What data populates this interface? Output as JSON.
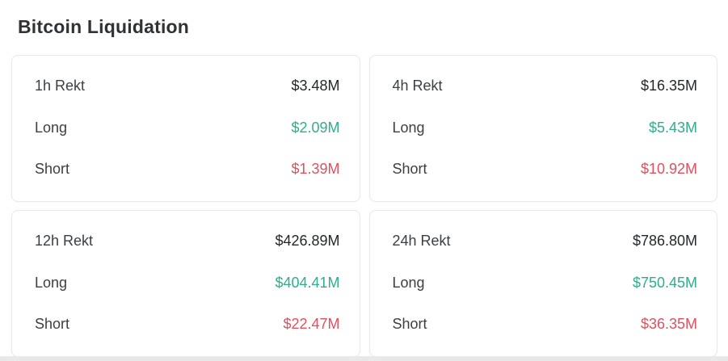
{
  "page": {
    "title": "Bitcoin Liquidation"
  },
  "colors": {
    "title": "#2f3338",
    "label": "#3b4046",
    "total": "#24282d",
    "long": "#2fae8e",
    "short": "#e0505f",
    "card_border": "#e8e8e8"
  },
  "cards": [
    {
      "period": "1h",
      "rows": [
        {
          "label": "1h Rekt",
          "value": "$3.48M"
        },
        {
          "label": "Long",
          "value": "$2.09M"
        },
        {
          "label": "Short",
          "value": "$1.39M"
        }
      ]
    },
    {
      "period": "4h",
      "rows": [
        {
          "label": "4h Rekt",
          "value": "$16.35M"
        },
        {
          "label": "Long",
          "value": "$5.43M"
        },
        {
          "label": "Short",
          "value": "$10.92M"
        }
      ]
    },
    {
      "period": "12h",
      "rows": [
        {
          "label": "12h Rekt",
          "value": "$426.89M"
        },
        {
          "label": "Long",
          "value": "$404.41M"
        },
        {
          "label": "Short",
          "value": "$22.47M"
        }
      ]
    },
    {
      "period": "24h",
      "rows": [
        {
          "label": "24h Rekt",
          "value": "$786.80M"
        },
        {
          "label": "Long",
          "value": "$750.45M"
        },
        {
          "label": "Short",
          "value": "$36.35M"
        }
      ]
    }
  ]
}
